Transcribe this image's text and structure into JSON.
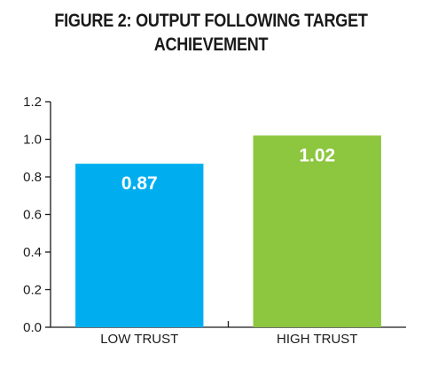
{
  "title_line1": "FIGURE 2: OUTPUT FOLLOWING TARGET",
  "title_line2": "ACHIEVEMENT",
  "chart_data": {
    "type": "bar",
    "title": "FIGURE 2: OUTPUT FOLLOWING TARGET ACHIEVEMENT",
    "categories": [
      "LOW TRUST",
      "HIGH TRUST"
    ],
    "values": [
      0.87,
      1.02
    ],
    "data_labels": [
      "0.87",
      "1.02"
    ],
    "colors": [
      "#00aeef",
      "#8dc63f"
    ],
    "ylim": [
      0,
      1.2
    ],
    "yticks": [
      "0.0",
      "0.2",
      "0.4",
      "0.6",
      "0.8",
      "1.0",
      "1.2"
    ],
    "xlabel": "",
    "ylabel": "",
    "grid": false,
    "legend": "none"
  }
}
